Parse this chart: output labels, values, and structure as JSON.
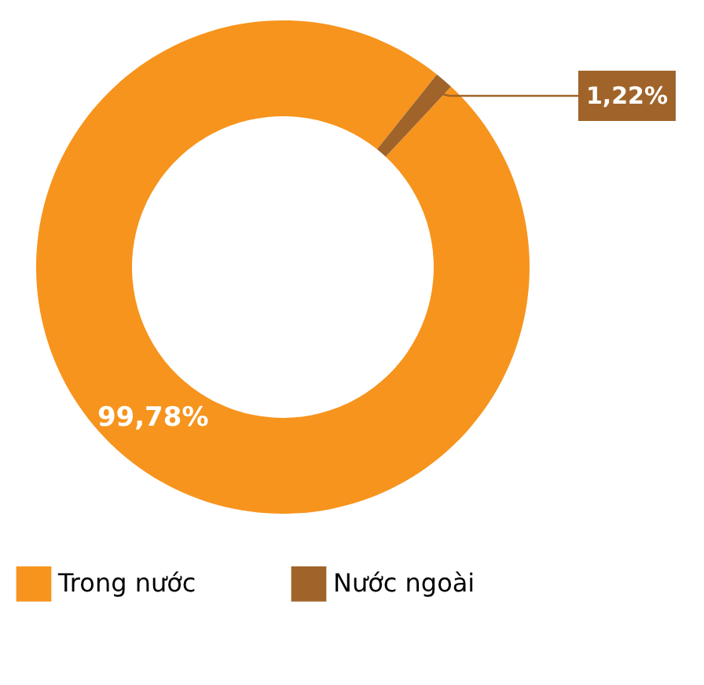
{
  "chart_data": {
    "type": "donut",
    "categories": [
      "Trong nước",
      "Nước ngoài"
    ],
    "values": [
      99.78,
      1.22
    ],
    "colors": [
      "#f7941d",
      "#a0642a"
    ],
    "value_labels": [
      "99,78%",
      "1,22%"
    ],
    "legend": "bottom"
  }
}
